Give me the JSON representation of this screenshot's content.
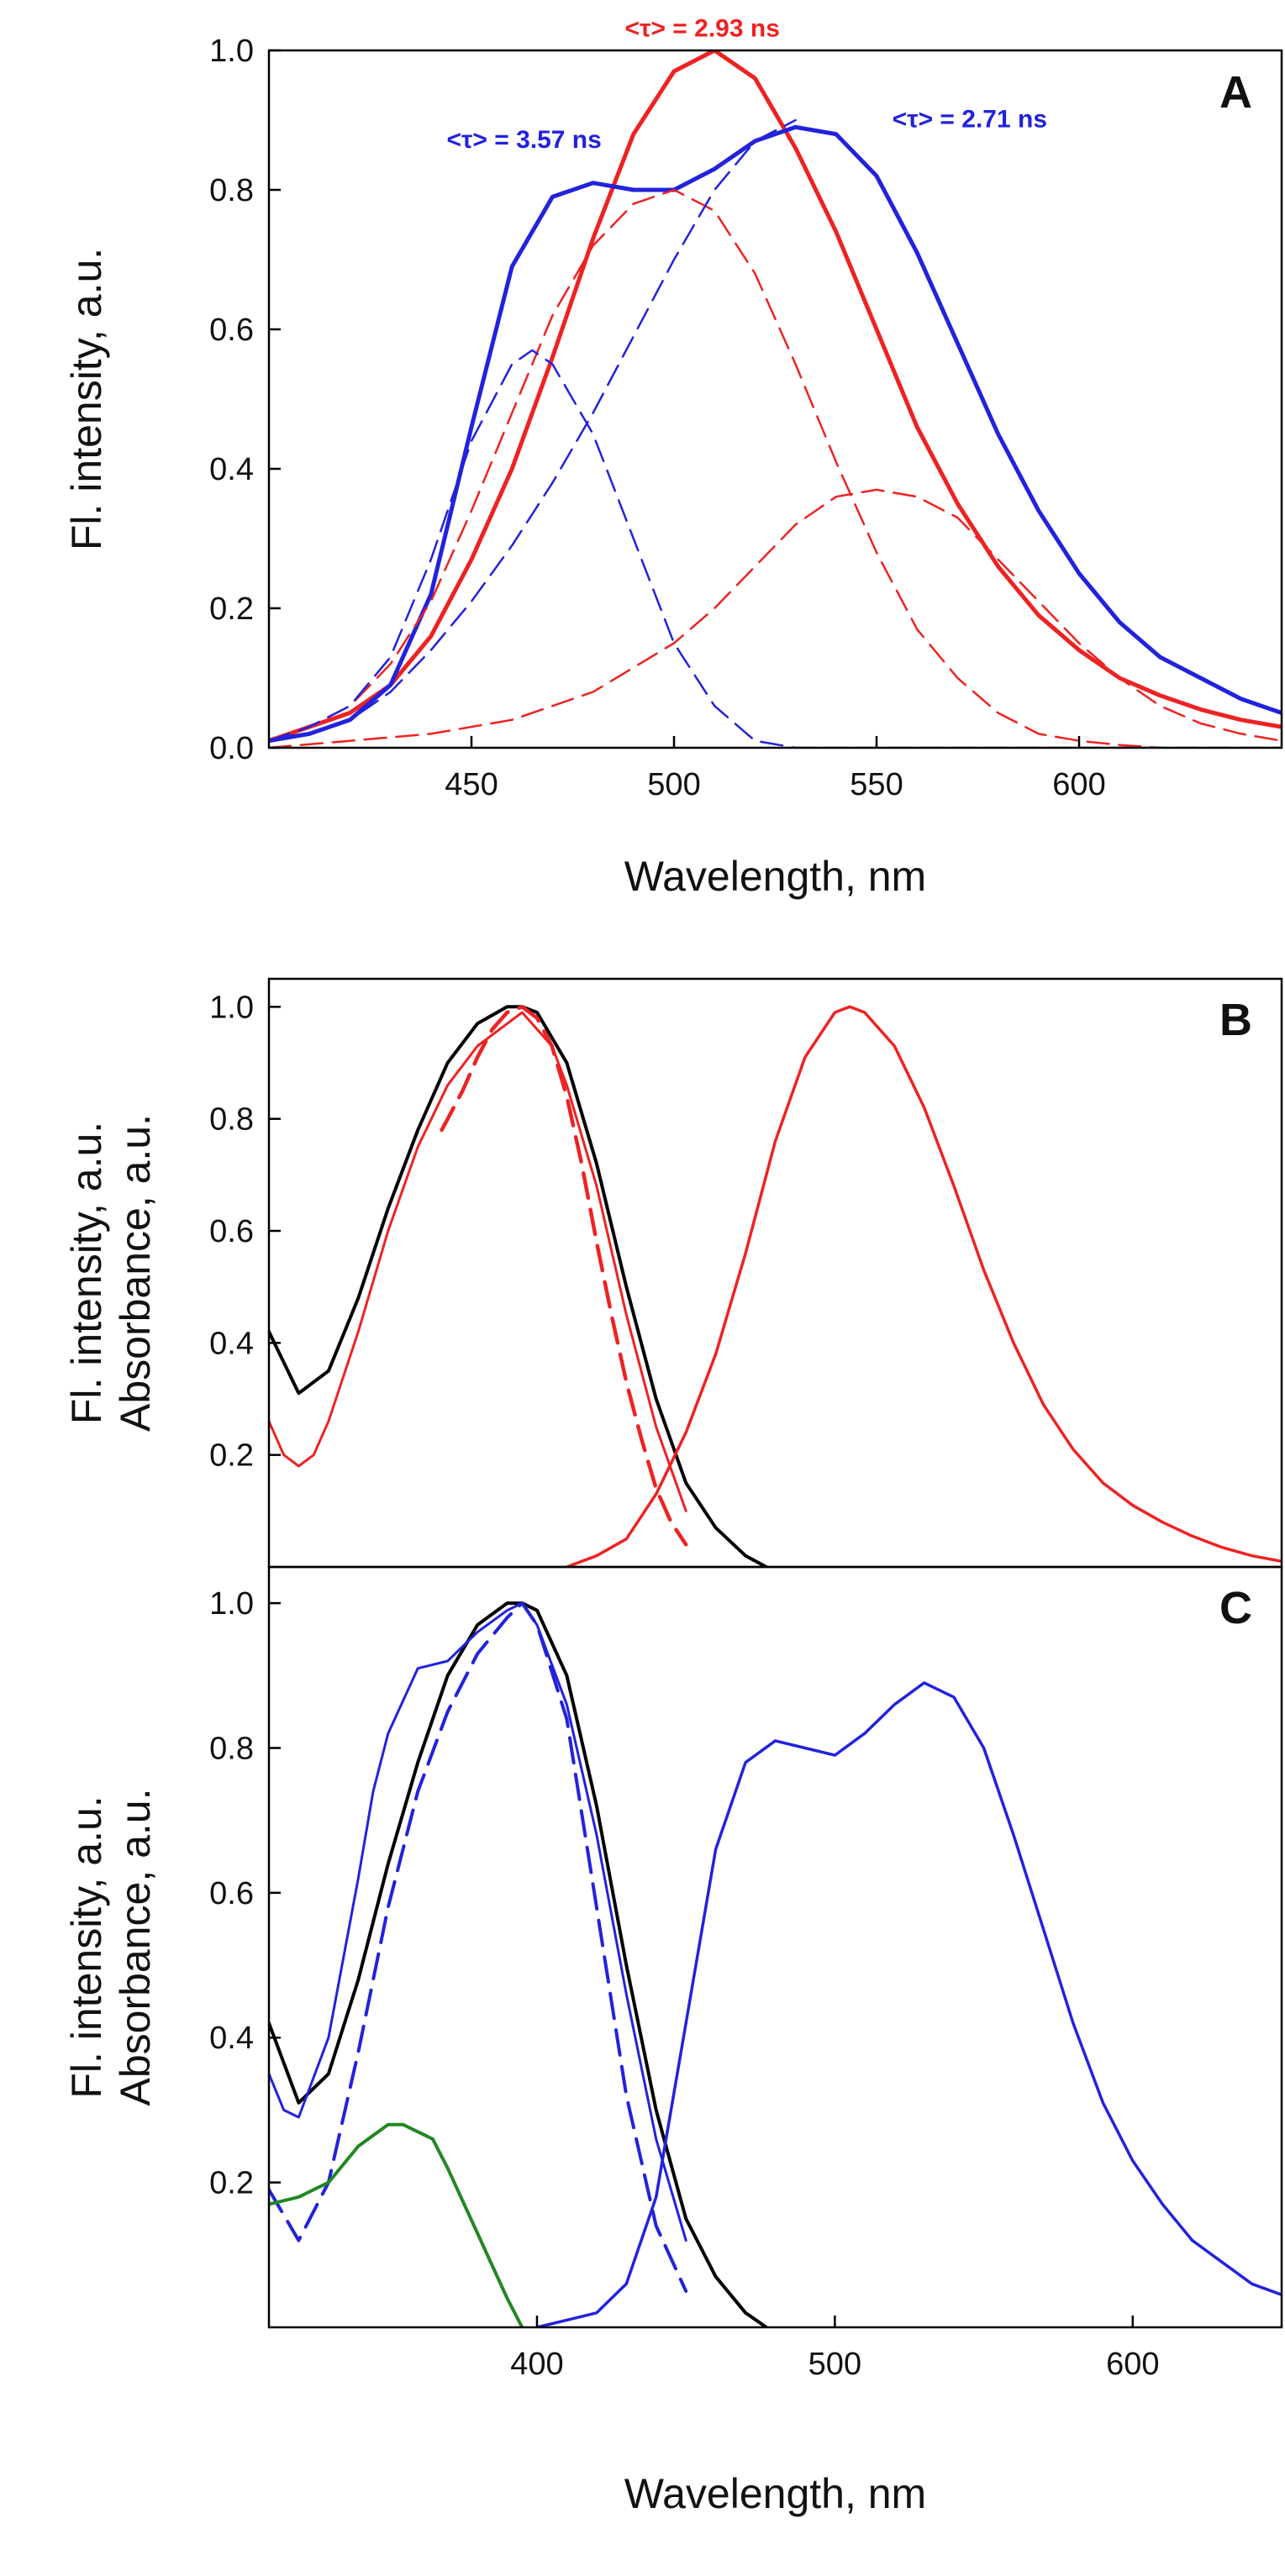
{
  "chart_data": [
    {
      "panel": "A",
      "type": "line",
      "title": "",
      "xlabel": "Wavelength, nm",
      "ylabel": "Fl. intensity, a.u.",
      "xlim": [
        400,
        650
      ],
      "ylim": [
        0,
        1.0
      ],
      "xticks": [
        450,
        500,
        550,
        600
      ],
      "yticks": [
        0.0,
        0.2,
        0.4,
        0.6,
        0.8,
        1.0
      ],
      "xtick_labels": [
        "450",
        "500",
        "550",
        "600"
      ],
      "ytick_labels": [
        "0.0",
        "0.2",
        "0.4",
        "0.6",
        "0.8",
        "1.0"
      ],
      "panel_label": "A",
      "annotations": [
        {
          "text": "<τ> = 2.93 ns",
          "color": "#ee2222",
          "x": 507,
          "y": 1.02
        },
        {
          "text": "<τ> = 3.57 ns",
          "color": "#2222dd",
          "x": 463,
          "y": 0.86
        },
        {
          "text": "<τ> = 2.71 ns",
          "color": "#2222dd",
          "x": 573,
          "y": 0.89
        }
      ],
      "series": [
        {
          "name": "red emission",
          "color": "#ee2222",
          "style": "solid",
          "width": 5,
          "x": [
            400,
            410,
            420,
            430,
            440,
            450,
            460,
            470,
            480,
            490,
            500,
            510,
            520,
            530,
            540,
            550,
            560,
            570,
            580,
            590,
            600,
            610,
            620,
            630,
            640,
            650
          ],
          "y": [
            0.01,
            0.03,
            0.05,
            0.09,
            0.16,
            0.27,
            0.4,
            0.56,
            0.73,
            0.88,
            0.97,
            1.0,
            0.96,
            0.86,
            0.74,
            0.6,
            0.46,
            0.35,
            0.26,
            0.19,
            0.14,
            0.1,
            0.075,
            0.055,
            0.04,
            0.03
          ]
        },
        {
          "name": "blue emission",
          "color": "#2222dd",
          "style": "solid",
          "width": 5,
          "x": [
            400,
            410,
            420,
            430,
            440,
            450,
            460,
            470,
            480,
            490,
            500,
            510,
            520,
            530,
            540,
            550,
            560,
            570,
            580,
            590,
            600,
            610,
            620,
            630,
            640,
            650
          ],
          "y": [
            0.01,
            0.02,
            0.04,
            0.09,
            0.22,
            0.46,
            0.69,
            0.79,
            0.81,
            0.8,
            0.8,
            0.83,
            0.87,
            0.89,
            0.88,
            0.82,
            0.71,
            0.58,
            0.45,
            0.34,
            0.25,
            0.18,
            0.13,
            0.1,
            0.07,
            0.05
          ]
        },
        {
          "name": "red component 1",
          "color": "#ee2222",
          "style": "dashed",
          "width": 2.5,
          "x": [
            400,
            410,
            420,
            430,
            440,
            450,
            460,
            470,
            480,
            490,
            500,
            510,
            520,
            530,
            540,
            550,
            560,
            570,
            580,
            590,
            600,
            610,
            620
          ],
          "y": [
            0.01,
            0.03,
            0.06,
            0.12,
            0.21,
            0.34,
            0.48,
            0.62,
            0.72,
            0.78,
            0.8,
            0.77,
            0.68,
            0.55,
            0.41,
            0.28,
            0.17,
            0.1,
            0.05,
            0.02,
            0.01,
            0.004,
            0.0
          ]
        },
        {
          "name": "red component 2",
          "color": "#ee2222",
          "style": "dashed",
          "width": 2.5,
          "x": [
            400,
            420,
            440,
            460,
            480,
            500,
            510,
            520,
            530,
            540,
            550,
            560,
            570,
            580,
            590,
            600,
            610,
            620,
            630,
            640,
            650
          ],
          "y": [
            0.0,
            0.01,
            0.02,
            0.04,
            0.08,
            0.15,
            0.2,
            0.26,
            0.32,
            0.36,
            0.37,
            0.36,
            0.33,
            0.27,
            0.21,
            0.15,
            0.1,
            0.06,
            0.035,
            0.02,
            0.01
          ]
        },
        {
          "name": "blue component 1",
          "color": "#2222dd",
          "style": "dashed",
          "width": 2.5,
          "x": [
            400,
            410,
            420,
            430,
            440,
            450,
            460,
            465,
            470,
            480,
            490,
            500,
            510,
            520,
            530,
            540,
            560,
            600,
            650
          ],
          "y": [
            0.01,
            0.03,
            0.06,
            0.13,
            0.27,
            0.44,
            0.55,
            0.57,
            0.55,
            0.45,
            0.3,
            0.15,
            0.06,
            0.01,
            0.0,
            0.0,
            0.0,
            0.0,
            0.0
          ]
        },
        {
          "name": "blue component 2",
          "color": "#2222dd",
          "style": "dashed",
          "width": 2.5,
          "x": [
            400,
            410,
            420,
            430,
            440,
            450,
            460,
            470,
            480,
            490,
            500,
            510,
            520,
            530
          ],
          "y": [
            0.01,
            0.02,
            0.04,
            0.08,
            0.14,
            0.21,
            0.29,
            0.38,
            0.48,
            0.59,
            0.7,
            0.8,
            0.87,
            0.9
          ]
        }
      ]
    },
    {
      "panel": "B",
      "type": "line",
      "title": "",
      "xlabel": "",
      "ylabel": [
        "Fl. intensity, a.u.",
        "Absorbance, a.u."
      ],
      "xlim": [
        310,
        650
      ],
      "ylim": [
        0,
        1.05
      ],
      "xticks": [],
      "yticks": [
        0.2,
        0.4,
        0.6,
        0.8,
        1.0
      ],
      "xtick_labels": [],
      "ytick_labels": [
        "0.2",
        "0.4",
        "0.6",
        "0.8",
        "1.0"
      ],
      "panel_label": "B",
      "series": [
        {
          "name": "absorbance",
          "color": "#000000",
          "style": "solid",
          "width": 4,
          "x": [
            310,
            320,
            330,
            340,
            350,
            360,
            370,
            380,
            390,
            395,
            400,
            410,
            420,
            430,
            440,
            450,
            460,
            470,
            477
          ],
          "y": [
            0.42,
            0.31,
            0.35,
            0.48,
            0.64,
            0.78,
            0.9,
            0.97,
            1.0,
            1.0,
            0.99,
            0.9,
            0.72,
            0.5,
            0.3,
            0.15,
            0.07,
            0.02,
            0.0
          ]
        },
        {
          "name": "excitation (solid)",
          "color": "#ee2222",
          "style": "solid",
          "width": 3,
          "x": [
            310,
            315,
            320,
            325,
            330,
            340,
            350,
            360,
            370,
            380,
            390,
            395,
            400,
            405,
            410,
            420,
            430,
            440,
            450
          ],
          "y": [
            0.26,
            0.2,
            0.18,
            0.2,
            0.26,
            0.42,
            0.6,
            0.75,
            0.86,
            0.93,
            0.97,
            0.99,
            0.96,
            0.93,
            0.86,
            0.68,
            0.45,
            0.25,
            0.1
          ]
        },
        {
          "name": "excitation (dashed)",
          "color": "#ee2222",
          "style": "dashed",
          "width": 4.5,
          "x": [
            368,
            375,
            380,
            385,
            390,
            395,
            400,
            405,
            410,
            415,
            420,
            425,
            430,
            435,
            440,
            445,
            450
          ],
          "y": [
            0.78,
            0.85,
            0.91,
            0.96,
            0.99,
            1.0,
            0.98,
            0.93,
            0.84,
            0.72,
            0.58,
            0.45,
            0.33,
            0.23,
            0.14,
            0.08,
            0.04
          ]
        },
        {
          "name": "emission",
          "color": "#ee2222",
          "style": "solid",
          "width": 3.5,
          "x": [
            410,
            420,
            430,
            440,
            450,
            460,
            470,
            480,
            490,
            500,
            505,
            510,
            520,
            530,
            540,
            550,
            560,
            570,
            580,
            590,
            600,
            610,
            620,
            630,
            640,
            650
          ],
          "y": [
            0.0,
            0.02,
            0.05,
            0.13,
            0.24,
            0.38,
            0.56,
            0.76,
            0.91,
            0.99,
            1.0,
            0.99,
            0.93,
            0.82,
            0.68,
            0.53,
            0.4,
            0.29,
            0.21,
            0.15,
            0.11,
            0.08,
            0.055,
            0.035,
            0.02,
            0.01
          ]
        }
      ]
    },
    {
      "panel": "C",
      "type": "line",
      "title": "",
      "xlabel": "Wavelength, nm",
      "ylabel": [
        "Fl. intensity, a.u.",
        "Absorbance, a.u."
      ],
      "xlim": [
        310,
        650
      ],
      "ylim": [
        0,
        1.05
      ],
      "xticks": [
        400,
        500,
        600
      ],
      "yticks": [
        0.2,
        0.4,
        0.6,
        0.8,
        1.0
      ],
      "xtick_labels": [
        "400",
        "500",
        "600"
      ],
      "ytick_labels": [
        "0.2",
        "0.4",
        "0.6",
        "0.8",
        "1.0"
      ],
      "panel_label": "C",
      "series": [
        {
          "name": "absorbance",
          "color": "#000000",
          "style": "solid",
          "width": 4,
          "x": [
            310,
            320,
            330,
            340,
            350,
            360,
            370,
            380,
            390,
            395,
            400,
            410,
            420,
            430,
            440,
            450,
            460,
            470,
            477
          ],
          "y": [
            0.42,
            0.31,
            0.35,
            0.48,
            0.64,
            0.78,
            0.9,
            0.97,
            1.0,
            1.0,
            0.99,
            0.9,
            0.72,
            0.5,
            0.3,
            0.15,
            0.07,
            0.02,
            0.0
          ]
        },
        {
          "name": "excitation (solid)",
          "color": "#2222dd",
          "style": "solid",
          "width": 3,
          "x": [
            310,
            315,
            320,
            330,
            340,
            345,
            350,
            360,
            370,
            380,
            390,
            395,
            400,
            410,
            420,
            430,
            440,
            450
          ],
          "y": [
            0.35,
            0.3,
            0.29,
            0.4,
            0.62,
            0.74,
            0.82,
            0.91,
            0.92,
            0.96,
            0.99,
            1.0,
            0.97,
            0.86,
            0.68,
            0.46,
            0.26,
            0.12
          ]
        },
        {
          "name": "excitation (dashed)",
          "color": "#2222dd",
          "style": "dashed",
          "width": 4,
          "x": [
            310,
            320,
            330,
            340,
            350,
            360,
            370,
            380,
            390,
            395,
            400,
            410,
            420,
            430,
            440,
            450
          ],
          "y": [
            0.19,
            0.12,
            0.2,
            0.38,
            0.58,
            0.74,
            0.85,
            0.93,
            0.98,
            1.0,
            0.97,
            0.84,
            0.58,
            0.32,
            0.14,
            0.05
          ]
        },
        {
          "name": "green",
          "color": "#228822",
          "style": "solid",
          "width": 4,
          "x": [
            310,
            320,
            330,
            340,
            350,
            355,
            360,
            365,
            370,
            380,
            390,
            395
          ],
          "y": [
            0.17,
            0.18,
            0.2,
            0.25,
            0.28,
            0.28,
            0.27,
            0.26,
            0.22,
            0.13,
            0.04,
            0.0
          ]
        },
        {
          "name": "emission",
          "color": "#2222dd",
          "style": "solid",
          "width": 3.5,
          "x": [
            400,
            410,
            420,
            430,
            440,
            450,
            460,
            470,
            480,
            490,
            500,
            510,
            520,
            530,
            540,
            550,
            560,
            570,
            580,
            590,
            600,
            610,
            620,
            630,
            640,
            650
          ],
          "y": [
            0.0,
            0.01,
            0.02,
            0.06,
            0.18,
            0.42,
            0.66,
            0.78,
            0.81,
            0.8,
            0.79,
            0.82,
            0.86,
            0.89,
            0.87,
            0.8,
            0.68,
            0.55,
            0.42,
            0.31,
            0.23,
            0.17,
            0.12,
            0.09,
            0.06,
            0.045
          ]
        }
      ]
    }
  ]
}
